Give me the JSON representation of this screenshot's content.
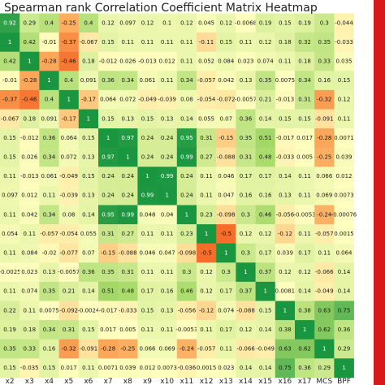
{
  "chart_data": {
    "type": "heatmap",
    "title": "Spearman rank Correlation Coefficient Matrix Heatmap",
    "x_labels": [
      "x2",
      "x3",
      "x4",
      "x5",
      "x6",
      "x7",
      "x8",
      "x9",
      "x10",
      "x11",
      "x12",
      "x13",
      "x14",
      "x15",
      "x16",
      "x17",
      "MCS",
      "BPF"
    ],
    "values": [
      [
        "0.92",
        "0.29",
        "0.4",
        "-0.25",
        "0.4",
        "0.12",
        "0.097",
        "0.12",
        "0.1",
        "0.12",
        "0.045",
        "0.12",
        "-0.0068",
        "0.19",
        "0.15",
        "0.19",
        "0.3",
        "-0.044"
      ],
      [
        "1",
        "0.42",
        "-0.01",
        "-0.37",
        "-0.067",
        "0.15",
        "0.11",
        "0.11",
        "0.11",
        "0.11",
        "-0.11",
        "0.15",
        "0.11",
        "0.12",
        "0.18",
        "0.32",
        "0.35",
        "-0.033"
      ],
      [
        "0.42",
        "1",
        "-0.28",
        "-0.46",
        "0.18",
        "-0.012",
        "0.026",
        "-0.013",
        "0.012",
        "0.11",
        "0.052",
        "0.084",
        "0.023",
        "0.074",
        "0.11",
        "0.18",
        "0.33",
        "0.035"
      ],
      [
        "-0.01",
        "-0.28",
        "1",
        "0.4",
        "0.091",
        "0.36",
        "0.34",
        "0.061",
        "0.11",
        "0.34",
        "-0.057",
        "0.042",
        "0.13",
        "0.35",
        "0.0075",
        "0.34",
        "0.16",
        "0.15"
      ],
      [
        "-0.37",
        "-0.46",
        "0.4",
        "1",
        "-0.17",
        "0.064",
        "0.072",
        "-0.049",
        "-0.039",
        "0.08",
        "-0.054",
        "-0.072",
        "-0.0057",
        "0.21",
        "-0.013",
        "0.31",
        "-0.32",
        "0.12"
      ],
      [
        "-0.067",
        "0.18",
        "0.091",
        "-0.17",
        "1",
        "0.15",
        "0.13",
        "0.15",
        "0.13",
        "0.14",
        "0.055",
        "0.07",
        "0.36",
        "0.14",
        "0.15",
        "0.15",
        "-0.091",
        "0.11"
      ],
      [
        "0.15",
        "-0.012",
        "0.36",
        "0.064",
        "0.15",
        "1",
        "0.97",
        "0.24",
        "0.24",
        "0.95",
        "0.31",
        "-0.15",
        "0.35",
        "0.51",
        "-0.017",
        "0.017",
        "-0.28",
        "0.0071"
      ],
      [
        "0.15",
        "0.026",
        "0.34",
        "0.072",
        "0.13",
        "0.97",
        "1",
        "0.24",
        "0.24",
        "0.99",
        "0.27",
        "-0.088",
        "0.31",
        "0.48",
        "-0.033",
        "0.005",
        "-0.25",
        "0.039"
      ],
      [
        "0.11",
        "-0.013",
        "0.061",
        "-0.049",
        "0.15",
        "0.24",
        "0.24",
        "1",
        "0.99",
        "0.24",
        "0.11",
        "0.046",
        "0.17",
        "0.17",
        "0.14",
        "0.11",
        "0.066",
        "0.012"
      ],
      [
        "0.097",
        "0.012",
        "0.11",
        "-0.039",
        "0.13",
        "0.24",
        "0.24",
        "0.99",
        "1",
        "0.24",
        "0.11",
        "0.047",
        "0.16",
        "0.16",
        "0.13",
        "0.11",
        "0.069",
        "0.0073"
      ],
      [
        "0.11",
        "0.042",
        "0.34",
        "0.08",
        "0.14",
        "0.95",
        "0.99",
        "0.048",
        "0.04",
        "1",
        "0.23",
        "-0.098",
        "0.3",
        "0.46",
        "-0.056",
        "-0.0053",
        "-0.24",
        "-0.00076"
      ],
      [
        "0.054",
        "0.11",
        "-0.057",
        "-0.054",
        "0.055",
        "0.31",
        "0.27",
        "0.11",
        "0.11",
        "0.23",
        "1",
        "-0.5",
        "0.12",
        "0.12",
        "-0.12",
        "0.11",
        "-0.057",
        "0.0015"
      ],
      [
        "0.11",
        "0.084",
        "-0.02",
        "-0.077",
        "0.07",
        "-0.15",
        "-0.088",
        "0.046",
        "0.047",
        "-0.098",
        "-0.5",
        "1",
        "0.3",
        "0.17",
        "0.039",
        "0.17",
        "0.11",
        "0.064"
      ],
      [
        "-0.0025",
        "0.023",
        "0.13",
        "-0.0057",
        "0.36",
        "0.35",
        "0.31",
        "0.11",
        "0.11",
        "0.3",
        "0.12",
        "0.3",
        "1",
        "0.37",
        "0.12",
        "0.12",
        "-0.066",
        "0.14"
      ],
      [
        "0.11",
        "0.074",
        "0.35",
        "0.21",
        "0.14",
        "0.51",
        "0.48",
        "0.17",
        "0.16",
        "0.46",
        "0.12",
        "0.17",
        "0.37",
        "1",
        "0.0081",
        "0.14",
        "-0.049",
        "0.14"
      ],
      [
        "0.22",
        "0.11",
        "0.0075",
        "-0.092",
        "-0.0024",
        "-0.017",
        "-0.033",
        "0.15",
        "0.13",
        "-0.056",
        "-0.12",
        "0.074",
        "-0.088",
        "0.15",
        "1",
        "0.38",
        "0.63",
        "0.75"
      ],
      [
        "0.19",
        "0.18",
        "0.34",
        "0.31",
        "0.15",
        "0.017",
        "0.005",
        "0.11",
        "0.11",
        "-0.0053",
        "0.11",
        "0.17",
        "0.12",
        "0.14",
        "0.38",
        "1",
        "0.62",
        "0.36"
      ],
      [
        "0.35",
        "0.33",
        "0.16",
        "-0.32",
        "-0.091",
        "-0.28",
        "-0.25",
        "0.066",
        "0.069",
        "-0.24",
        "-0.057",
        "0.11",
        "-0.066",
        "-0.049",
        "0.63",
        "0.62",
        "1",
        "0.29"
      ],
      [
        "0.15",
        "-0.035",
        "0.15",
        "0.017",
        "0.11",
        "0.0071",
        "0.039",
        "0.012",
        "0.0073",
        "-0.036",
        "0.0015",
        "0.023",
        "0.14",
        "0.14",
        "0.75",
        "0.36",
        "0.29",
        "1"
      ]
    ],
    "colors": {
      "negative_strong": "#f46d2a",
      "negative_mid": "#fdae61",
      "neutral": "#ffffbf",
      "positive_mid": "#a6d96a",
      "positive_strong": "#1a9641",
      "colorbar_accent": "#d7191c"
    }
  }
}
